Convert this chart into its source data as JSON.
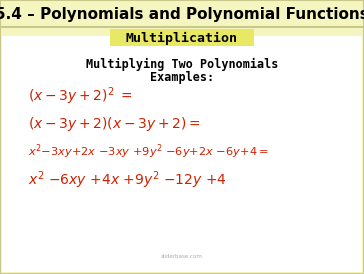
{
  "title": "5.4 – Polynomials and Polynomial Functions",
  "title_bg": "#f5f5c0",
  "subtitle": "Multiplication",
  "subtitle_bg": "#e8e864",
  "overall_bg": "#f5f5c0",
  "body_bg": "#ffffff",
  "border_color": "#c8c88a",
  "text_color_black": "#000000",
  "text_color_red": "#cc2200",
  "watermark": "sliderbase.com",
  "line1": "$(x-3y+2)^{2}=$",
  "line2": "$(x-3y+2)(x-3y+2)=$",
  "line3": "$x^{2}{-}3xy{+}2x\\ {-}3xy\\ {+}9y^{2}\\ {-}6y{+}2x\\ {-}6y{+}4=$",
  "line4": "$x^{2}\\ {-}6xy\\ {+}4x\\ {+}9y^{2}\\ {-}12y\\ {+}4$"
}
